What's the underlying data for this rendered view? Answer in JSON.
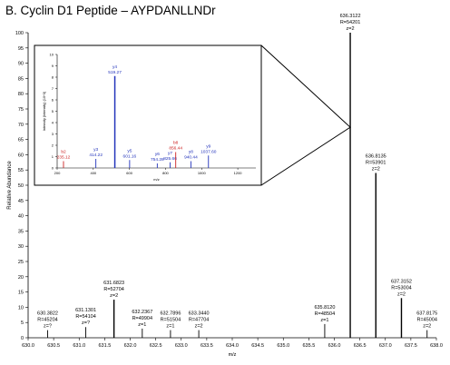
{
  "figure": {
    "title": "B. Cyclin D1 Peptide – AYPDANLLNDr"
  },
  "colors": {
    "axis": "#000000",
    "peak": "#000000",
    "y_ion": "#2233bb",
    "b_ion": "#cc2222"
  },
  "chart_data": [
    {
      "type": "line",
      "title": "",
      "xlabel": "m/z",
      "ylabel": "Relative Abundance",
      "xlim": [
        630.0,
        638.0
      ],
      "ylim": [
        0,
        100
      ],
      "xticks": [
        "630.0",
        "630.5",
        "631.0",
        "631.5",
        "632.0",
        "632.5",
        "633.0",
        "633.5",
        "634.0",
        "634.5",
        "635.0",
        "635.5",
        "636.0",
        "636.5",
        "637.0",
        "637.5",
        "638.0"
      ],
      "yticks": [
        "0",
        "5",
        "10",
        "15",
        "20",
        "25",
        "30",
        "35",
        "40",
        "45",
        "50",
        "55",
        "60",
        "65",
        "70",
        "75",
        "80",
        "85",
        "90",
        "95",
        "100"
      ],
      "peaks": [
        {
          "mz": 630.3822,
          "intensity": 2.5,
          "label": [
            "630.3822",
            "R=45204",
            "z=?"
          ]
        },
        {
          "mz": 631.1301,
          "intensity": 3.5,
          "label": [
            "631.1301",
            "R=54104",
            "z=?"
          ]
        },
        {
          "mz": 631.6823,
          "intensity": 12.5,
          "label": [
            "631.6823",
            "R=52704",
            "z=2"
          ]
        },
        {
          "mz": 632.2367,
          "intensity": 3.0,
          "label": [
            "632.2367",
            "R=49904",
            "z=1"
          ]
        },
        {
          "mz": 632.7896,
          "intensity": 2.5,
          "label": [
            "632.7896",
            "R=51504",
            "z=1"
          ]
        },
        {
          "mz": 633.344,
          "intensity": 2.5,
          "label": [
            "633.3440",
            "R=47704",
            "z=2"
          ]
        },
        {
          "mz": 635.812,
          "intensity": 4.5,
          "label": [
            "635.8120",
            "R=48504",
            "z=1"
          ]
        },
        {
          "mz": 636.3122,
          "intensity": 100,
          "label": [
            "636.3122",
            "R=54201",
            "z=2"
          ]
        },
        {
          "mz": 636.8135,
          "intensity": 54,
          "label": [
            "636.8135",
            "R=53901",
            "z=2"
          ]
        },
        {
          "mz": 637.3152,
          "intensity": 13,
          "label": [
            "637.3152",
            "R=53004",
            "z=2"
          ]
        },
        {
          "mz": 637.8175,
          "intensity": 2.5,
          "label": [
            "637.8175",
            "R=45004",
            "z=2"
          ]
        }
      ]
    },
    {
      "type": "bar",
      "title": "",
      "xlabel": "m/z",
      "ylabel": "Intensity (Intensity) (10^3)",
      "xlim": [
        200,
        1300
      ],
      "ylim": [
        0,
        10
      ],
      "xticks": [
        "200",
        "400",
        "600",
        "800",
        "1000",
        "1200"
      ],
      "yticks": [
        "0",
        "1",
        "2",
        "3",
        "4",
        "5",
        "6",
        "7",
        "8",
        "9",
        "10"
      ],
      "ions": [
        {
          "mz": 235.12,
          "intensity": 0.6,
          "type": "b",
          "ion": "b2",
          "value": "235.12"
        },
        {
          "mz": 414.22,
          "intensity": 0.8,
          "type": "y",
          "ion": "y3",
          "value": "414.22"
        },
        {
          "mz": 519.27,
          "intensity": 8.1,
          "type": "y",
          "ion": "y4",
          "value": "519.27"
        },
        {
          "mz": 601.16,
          "intensity": 0.7,
          "type": "y",
          "ion": "y5",
          "value": "601.16"
        },
        {
          "mz": 754.28,
          "intensity": 0.4,
          "type": "y",
          "ion": "y6",
          "value": "754.28"
        },
        {
          "mz": 825.66,
          "intensity": 0.5,
          "type": "y",
          "ion": "y7",
          "value": "825.66"
        },
        {
          "mz": 856.44,
          "intensity": 1.4,
          "type": "b",
          "ion": "b8",
          "value": "856.44"
        },
        {
          "mz": 940.44,
          "intensity": 0.6,
          "type": "y",
          "ion": "y8",
          "value": "940.44"
        },
        {
          "mz": 1037.6,
          "intensity": 1.1,
          "type": "y",
          "ion": "y9",
          "value": "1037.60"
        }
      ]
    }
  ]
}
